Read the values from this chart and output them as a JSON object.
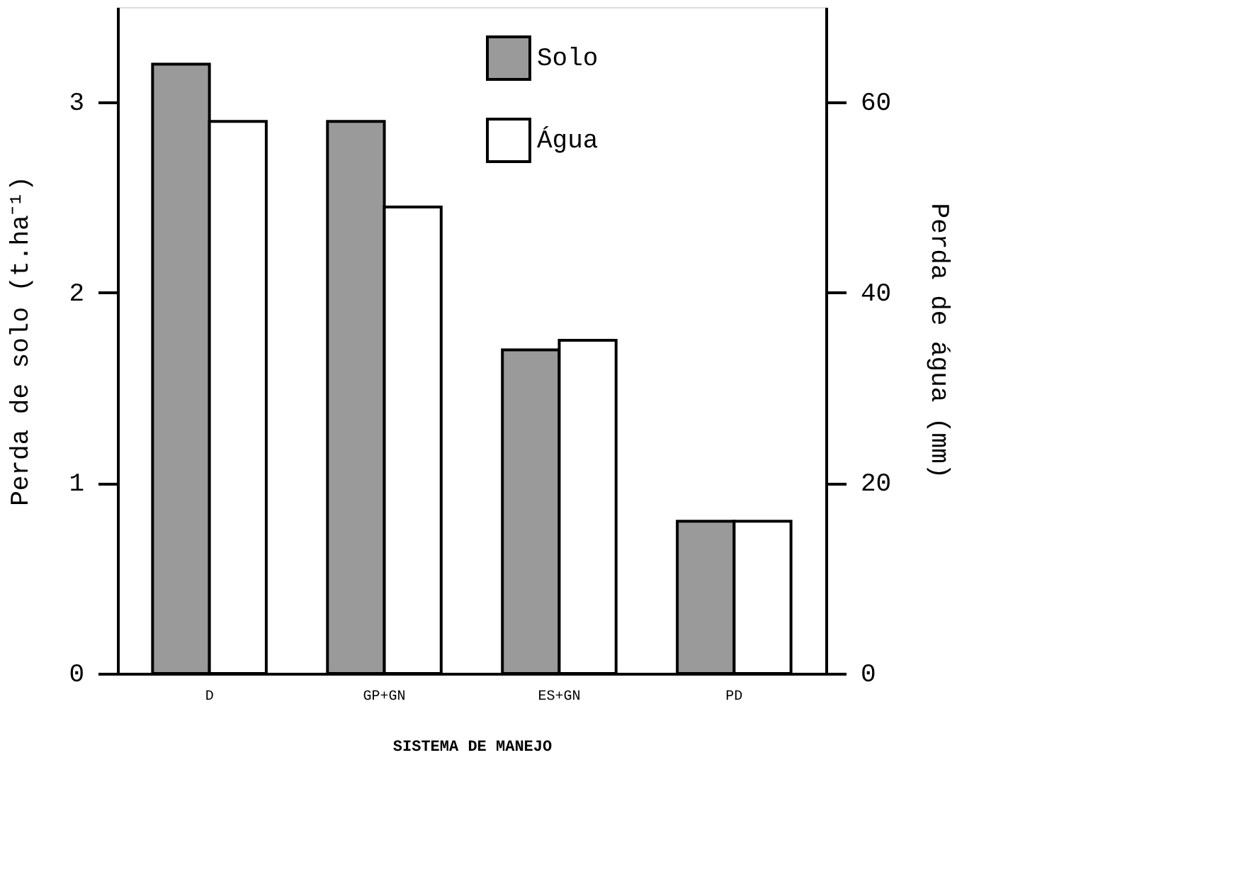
{
  "chart_data": {
    "type": "bar",
    "xlabel": "SISTEMA DE MANEJO",
    "ylabel": "Perda de solo (t.ha⁻¹)",
    "y2label": "Perda de água (mm)",
    "categories": [
      "D",
      "GP+GN",
      "ES+GN",
      "PD"
    ],
    "series": [
      {
        "name": "Solo",
        "color": "#9a9a9a",
        "values": [
          3.2,
          2.9,
          1.7,
          0.8
        ]
      },
      {
        "name": "Água",
        "color": "#ffffff",
        "values": [
          58,
          49,
          35,
          16
        ],
        "axis": "y2"
      }
    ],
    "ylim": [
      0,
      3.5
    ],
    "yticks": [
      0,
      1,
      2,
      3
    ],
    "y2lim": [
      0,
      70
    ],
    "y2ticks": [
      0,
      20,
      40,
      60
    ],
    "legend": "top",
    "grid": false
  }
}
